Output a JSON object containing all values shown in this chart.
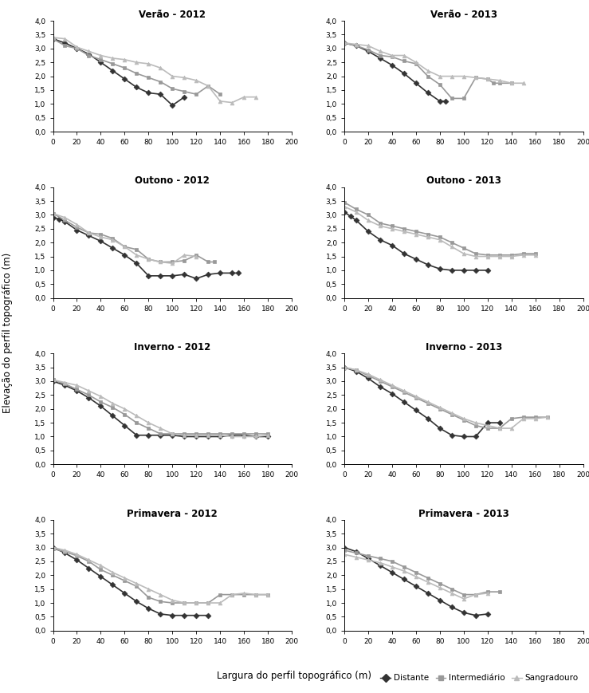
{
  "plots": [
    {
      "title": "Verão - 2012",
      "distante": {
        "x": [
          0,
          10,
          20,
          30,
          40,
          50,
          60,
          70,
          80,
          90,
          100,
          110
        ],
        "y": [
          3.35,
          3.2,
          3.0,
          2.8,
          2.5,
          2.2,
          1.9,
          1.6,
          1.4,
          1.35,
          0.95,
          1.25
        ]
      },
      "intermediario": {
        "x": [
          0,
          10,
          20,
          30,
          40,
          50,
          60,
          70,
          80,
          90,
          100,
          110,
          120,
          130,
          140
        ],
        "y": [
          3.35,
          3.1,
          3.0,
          2.75,
          2.6,
          2.45,
          2.3,
          2.1,
          1.95,
          1.8,
          1.55,
          1.45,
          1.35,
          1.65,
          1.35
        ]
      },
      "sangradouro": {
        "x": [
          0,
          10,
          20,
          30,
          40,
          50,
          60,
          70,
          80,
          90,
          100,
          110,
          120,
          130,
          140,
          150,
          160,
          170
        ],
        "y": [
          3.4,
          3.35,
          3.05,
          2.9,
          2.75,
          2.65,
          2.6,
          2.5,
          2.45,
          2.3,
          2.0,
          1.95,
          1.85,
          1.65,
          1.1,
          1.05,
          1.25,
          1.25
        ]
      }
    },
    {
      "title": "Verão - 2013",
      "distante": {
        "x": [
          0,
          10,
          20,
          30,
          40,
          50,
          60,
          70,
          80,
          85
        ],
        "y": [
          3.2,
          3.1,
          2.9,
          2.65,
          2.4,
          2.1,
          1.75,
          1.4,
          1.1,
          1.1
        ]
      },
      "intermediario": {
        "x": [
          0,
          10,
          20,
          30,
          40,
          50,
          60,
          70,
          80,
          90,
          100,
          110,
          120,
          125,
          130,
          140
        ],
        "y": [
          3.2,
          3.1,
          2.95,
          2.75,
          2.7,
          2.55,
          2.45,
          2.0,
          1.7,
          1.2,
          1.2,
          1.95,
          1.9,
          1.75,
          1.75,
          1.75
        ]
      },
      "sangradouro": {
        "x": [
          0,
          10,
          20,
          30,
          40,
          50,
          60,
          70,
          80,
          90,
          100,
          110,
          120,
          130,
          140,
          150
        ],
        "y": [
          3.2,
          3.15,
          3.1,
          2.9,
          2.75,
          2.75,
          2.5,
          2.2,
          2.0,
          2.0,
          2.0,
          1.95,
          1.9,
          1.85,
          1.75,
          1.75
        ]
      }
    },
    {
      "title": "Outono - 2012",
      "distante": {
        "x": [
          0,
          5,
          10,
          20,
          30,
          40,
          50,
          60,
          70,
          80,
          90,
          100,
          110,
          120,
          130,
          140,
          150,
          155
        ],
        "y": [
          2.9,
          2.85,
          2.75,
          2.45,
          2.25,
          2.05,
          1.8,
          1.55,
          1.25,
          0.8,
          0.8,
          0.8,
          0.85,
          0.7,
          0.85,
          0.9,
          0.9,
          0.9
        ]
      },
      "intermediario": {
        "x": [
          0,
          10,
          20,
          30,
          40,
          50,
          60,
          70,
          80,
          90,
          100,
          110,
          120,
          130,
          135
        ],
        "y": [
          3.05,
          2.8,
          2.55,
          2.35,
          2.3,
          2.15,
          1.85,
          1.75,
          1.4,
          1.3,
          1.3,
          1.35,
          1.55,
          1.3,
          1.3
        ]
      },
      "sangradouro": {
        "x": [
          0,
          10,
          20,
          30,
          40,
          50,
          60,
          70,
          80,
          90,
          100,
          110,
          120
        ],
        "y": [
          3.05,
          2.9,
          2.65,
          2.35,
          2.2,
          2.1,
          1.85,
          1.55,
          1.4,
          1.3,
          1.25,
          1.55,
          1.5
        ]
      }
    },
    {
      "title": "Outono - 2013",
      "distante": {
        "x": [
          0,
          5,
          10,
          20,
          30,
          40,
          50,
          60,
          70,
          80,
          90,
          100,
          110,
          120
        ],
        "y": [
          3.1,
          2.95,
          2.8,
          2.4,
          2.1,
          1.9,
          1.6,
          1.4,
          1.2,
          1.05,
          1.0,
          1.0,
          1.0,
          1.0
        ]
      },
      "intermediario": {
        "x": [
          0,
          10,
          20,
          30,
          40,
          50,
          60,
          70,
          80,
          90,
          100,
          110,
          120,
          130,
          140,
          150,
          160
        ],
        "y": [
          3.45,
          3.2,
          3.0,
          2.7,
          2.6,
          2.5,
          2.4,
          2.3,
          2.2,
          2.0,
          1.8,
          1.6,
          1.55,
          1.55,
          1.55,
          1.6,
          1.6
        ]
      },
      "sangradouro": {
        "x": [
          0,
          10,
          20,
          30,
          40,
          50,
          60,
          70,
          80,
          90,
          100,
          110,
          120,
          130,
          140,
          150,
          160
        ],
        "y": [
          3.3,
          3.1,
          2.8,
          2.6,
          2.5,
          2.4,
          2.3,
          2.2,
          2.1,
          1.85,
          1.6,
          1.5,
          1.5,
          1.5,
          1.5,
          1.55,
          1.55
        ]
      }
    },
    {
      "title": "Inverno - 2012",
      "distante": {
        "x": [
          0,
          10,
          20,
          30,
          40,
          50,
          60,
          70,
          80,
          90,
          100,
          110,
          120,
          130,
          140,
          150,
          160,
          170,
          180
        ],
        "y": [
          3.0,
          2.85,
          2.65,
          2.4,
          2.1,
          1.75,
          1.4,
          1.05,
          1.05,
          1.05,
          1.05,
          1.0,
          1.0,
          1.0,
          1.0,
          1.05,
          1.05,
          1.0,
          1.0
        ]
      },
      "intermediario": {
        "x": [
          0,
          10,
          20,
          30,
          40,
          50,
          60,
          70,
          80,
          90,
          100,
          110,
          120,
          130,
          140,
          150,
          160,
          170,
          180
        ],
        "y": [
          3.05,
          2.9,
          2.7,
          2.5,
          2.25,
          2.05,
          1.8,
          1.5,
          1.3,
          1.1,
          1.1,
          1.1,
          1.1,
          1.1,
          1.1,
          1.1,
          1.1,
          1.1,
          1.1
        ]
      },
      "sangradouro": {
        "x": [
          0,
          10,
          20,
          30,
          40,
          50,
          60,
          70,
          80,
          90,
          100,
          110,
          120,
          130,
          140,
          150,
          160,
          170,
          180
        ],
        "y": [
          3.05,
          2.95,
          2.85,
          2.65,
          2.45,
          2.2,
          2.0,
          1.75,
          1.5,
          1.3,
          1.1,
          1.05,
          1.05,
          1.05,
          1.05,
          1.0,
          1.0,
          1.0,
          1.05
        ]
      }
    },
    {
      "title": "Inverno - 2013",
      "distante": {
        "x": [
          0,
          10,
          20,
          30,
          40,
          50,
          60,
          70,
          80,
          90,
          100,
          110,
          120,
          130
        ],
        "y": [
          3.5,
          3.35,
          3.1,
          2.8,
          2.55,
          2.25,
          1.95,
          1.65,
          1.3,
          1.05,
          1.0,
          1.0,
          1.5,
          1.5
        ]
      },
      "intermediario": {
        "x": [
          0,
          10,
          20,
          30,
          40,
          50,
          60,
          70,
          80,
          90,
          100,
          110,
          120,
          130,
          140,
          150,
          160,
          170
        ],
        "y": [
          3.5,
          3.4,
          3.2,
          3.0,
          2.8,
          2.6,
          2.4,
          2.2,
          2.0,
          1.8,
          1.6,
          1.4,
          1.3,
          1.3,
          1.65,
          1.7,
          1.7,
          1.7
        ]
      },
      "sangradouro": {
        "x": [
          0,
          10,
          20,
          30,
          40,
          50,
          60,
          70,
          80,
          90,
          100,
          110,
          120,
          130,
          140,
          150,
          160,
          170
        ],
        "y": [
          3.5,
          3.4,
          3.25,
          3.05,
          2.85,
          2.65,
          2.45,
          2.25,
          2.05,
          1.85,
          1.65,
          1.5,
          1.4,
          1.3,
          1.3,
          1.65,
          1.65,
          1.7
        ]
      }
    },
    {
      "title": "Primavera - 2012",
      "distante": {
        "x": [
          0,
          10,
          20,
          30,
          40,
          50,
          60,
          70,
          80,
          90,
          100,
          110,
          120,
          130
        ],
        "y": [
          3.0,
          2.8,
          2.55,
          2.25,
          1.95,
          1.65,
          1.35,
          1.05,
          0.8,
          0.6,
          0.55,
          0.55,
          0.55,
          0.55
        ]
      },
      "intermediario": {
        "x": [
          0,
          10,
          20,
          30,
          40,
          50,
          60,
          70,
          80,
          90,
          100,
          110,
          120,
          130,
          140,
          150,
          160,
          170,
          180
        ],
        "y": [
          2.95,
          2.85,
          2.7,
          2.5,
          2.2,
          2.0,
          1.8,
          1.6,
          1.2,
          1.05,
          1.0,
          1.0,
          1.0,
          1.0,
          1.3,
          1.3,
          1.3,
          1.3,
          1.3
        ]
      },
      "sangradouro": {
        "x": [
          0,
          10,
          20,
          30,
          40,
          50,
          60,
          70,
          80,
          90,
          100,
          110,
          120,
          130,
          140,
          150,
          160,
          170,
          180
        ],
        "y": [
          3.0,
          2.9,
          2.75,
          2.55,
          2.35,
          2.1,
          1.9,
          1.7,
          1.5,
          1.3,
          1.1,
          1.0,
          1.0,
          1.0,
          1.0,
          1.3,
          1.35,
          1.3,
          1.3
        ]
      }
    },
    {
      "title": "Primavera - 2013",
      "distante": {
        "x": [
          0,
          10,
          20,
          30,
          40,
          50,
          60,
          70,
          80,
          90,
          100,
          110,
          120
        ],
        "y": [
          3.0,
          2.85,
          2.6,
          2.35,
          2.1,
          1.85,
          1.6,
          1.35,
          1.1,
          0.85,
          0.65,
          0.55,
          0.6
        ]
      },
      "intermediario": {
        "x": [
          0,
          10,
          20,
          30,
          40,
          50,
          60,
          70,
          80,
          90,
          100,
          110,
          120,
          130
        ],
        "y": [
          2.9,
          2.8,
          2.7,
          2.6,
          2.5,
          2.3,
          2.1,
          1.9,
          1.7,
          1.5,
          1.3,
          1.3,
          1.4,
          1.4
        ]
      },
      "sangradouro": {
        "x": [
          0,
          10,
          20,
          30,
          40,
          50,
          60,
          70,
          80,
          90,
          100,
          110,
          120
        ],
        "y": [
          2.75,
          2.65,
          2.55,
          2.45,
          2.3,
          2.15,
          1.95,
          1.75,
          1.55,
          1.35,
          1.15,
          1.3,
          1.35
        ]
      }
    }
  ],
  "color_distante": "#333333",
  "color_intermediario": "#999999",
  "color_sangradouro": "#bbbbbb",
  "marker_distante": "D",
  "marker_intermediario": "s",
  "marker_sangradouro": "^",
  "markersize": 3.5,
  "linewidth": 1.2,
  "ylabel": "Elevação do perfil topográfico (m)",
  "xlabel": "Largura do perfil topográfico (m)",
  "ylim": [
    0.0,
    4.0
  ],
  "xlim": [
    0,
    200
  ],
  "yticks": [
    0.0,
    0.5,
    1.0,
    1.5,
    2.0,
    2.5,
    3.0,
    3.5,
    4.0
  ],
  "xticks": [
    0,
    20,
    40,
    60,
    80,
    100,
    120,
    140,
    160,
    180,
    200
  ],
  "legend_labels": [
    "Distante",
    "Intermediário",
    "Sangradouro"
  ],
  "legend_markers": [
    "D",
    "s",
    "^"
  ],
  "legend_colors": [
    "#333333",
    "#999999",
    "#bbbbbb"
  ]
}
